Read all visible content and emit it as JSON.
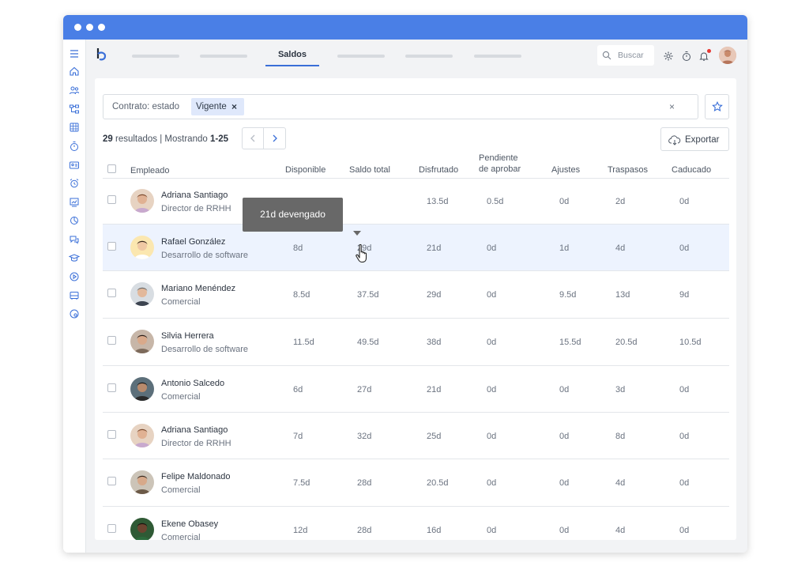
{
  "topbar": {
    "active_tab": "Saldos",
    "search_placeholder": "Buscar"
  },
  "filter": {
    "label": "Contrato: estado",
    "chip": "Vigente",
    "chip_remove": "×",
    "clear": "×"
  },
  "results": {
    "count": "29",
    "text": " resultados | Mostrando ",
    "range": "1-25"
  },
  "export_label": "Exportar",
  "columns": {
    "employee": "Empleado",
    "available": "Disponible",
    "total": "Saldo total",
    "enjoyed": "Disfrutado",
    "pending_1": "Pendiente",
    "pending_2": "de aprobar",
    "adjustments": "Ajustes",
    "transfers": "Traspasos",
    "expired": "Caducado"
  },
  "rows": [
    {
      "name": "Adriana Santiago",
      "role": "Director de RRHH",
      "available": "12d",
      "total": "",
      "enjoyed": "13.5d",
      "pending": "0.5d",
      "adjustments": "0d",
      "transfers": "2d",
      "expired": "0d"
    },
    {
      "name": "Rafael González",
      "role": "Desarrollo de software",
      "available": "8d",
      "total": "29d",
      "enjoyed": "21d",
      "pending": "0d",
      "adjustments": "1d",
      "transfers": "4d",
      "expired": "0d"
    },
    {
      "name": "Mariano Menéndez",
      "role": "Comercial",
      "available": "8.5d",
      "total": "37.5d",
      "enjoyed": "29d",
      "pending": "0d",
      "adjustments": "9.5d",
      "transfers": "13d",
      "expired": "9d"
    },
    {
      "name": "Silvia Herrera",
      "role": "Desarrollo de software",
      "available": "11.5d",
      "total": "49.5d",
      "enjoyed": "38d",
      "pending": "0d",
      "adjustments": "15.5d",
      "transfers": "20.5d",
      "expired": "10.5d"
    },
    {
      "name": "Antonio Salcedo",
      "role": "Comercial",
      "available": "6d",
      "total": "27d",
      "enjoyed": "21d",
      "pending": "0d",
      "adjustments": "0d",
      "transfers": "3d",
      "expired": "0d"
    },
    {
      "name": "Adriana Santiago",
      "role": "Director de RRHH",
      "available": "7d",
      "total": "32d",
      "enjoyed": "25d",
      "pending": "0d",
      "adjustments": "0d",
      "transfers": "8d",
      "expired": "0d"
    },
    {
      "name": "Felipe Maldonado",
      "role": "Comercial",
      "available": "7.5d",
      "total": "28d",
      "enjoyed": "20.5d",
      "pending": "0d",
      "adjustments": "0d",
      "transfers": "4d",
      "expired": "0d"
    },
    {
      "name": "Ekene Obasey",
      "role": "Comercial",
      "available": "12d",
      "total": "28d",
      "enjoyed": "16d",
      "pending": "0d",
      "adjustments": "0d",
      "transfers": "4d",
      "expired": "0d"
    }
  ],
  "tooltip": "21d devengado",
  "colors": {
    "accent": "#4a7fe6",
    "active_tab_underline": "#3a6fd8",
    "row_highlight": "#edf3fe",
    "tooltip_bg": "#686868",
    "notification": "#e53935"
  },
  "icons": {
    "sidebar": [
      "menu-icon",
      "home-icon",
      "people-icon",
      "org-chart-icon",
      "calendar-grid-icon",
      "stopwatch-icon",
      "id-card-icon",
      "alarm-icon",
      "chart-user-icon",
      "pie-icon",
      "chat-icon",
      "graduation-cap-icon",
      "play-icon",
      "bus-icon",
      "palette-icon"
    ],
    "topbar": [
      "gear-icon",
      "timer-icon",
      "bell-icon"
    ]
  }
}
